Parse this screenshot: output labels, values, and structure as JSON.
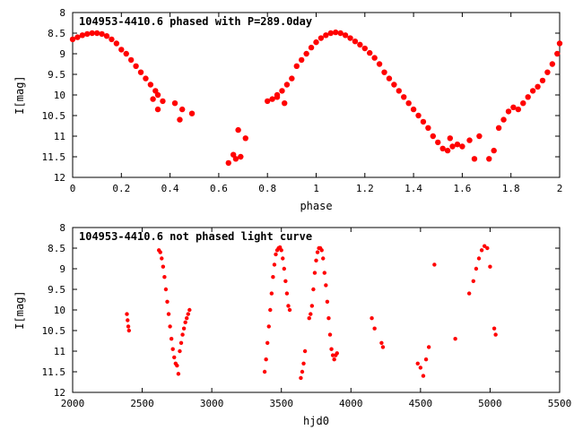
{
  "chart_data": [
    {
      "type": "scatter",
      "title": "104953-4410.6 phased with P=289.0day",
      "xlabel": "phase",
      "ylabel": "I[mag]",
      "xlim": [
        0,
        2
      ],
      "ylim": [
        8,
        12
      ],
      "y_inverted": true,
      "xticks": [
        0,
        0.2,
        0.4,
        0.6,
        0.8,
        1,
        1.2,
        1.4,
        1.6,
        1.8,
        2
      ],
      "xtick_labels": [
        "0",
        "0.2",
        "0.4",
        "0.6",
        "0.8",
        "1",
        "1.2",
        "1.4",
        "1.6",
        "1.8",
        "2"
      ],
      "yticks": [
        8,
        8.5,
        9,
        9.5,
        10,
        10.5,
        11,
        11.5,
        12
      ],
      "ytick_labels": [
        "8",
        "8.5",
        "9",
        "9.5",
        "10",
        "10.5",
        "11",
        "11.5",
        "12"
      ],
      "grid": false,
      "marker_color": "#ff0000",
      "series": [
        {
          "x": [
            0.0,
            0.02,
            0.04,
            0.06,
            0.08,
            0.1,
            0.12,
            0.14,
            0.16,
            0.18,
            0.2,
            0.22,
            0.24,
            0.26,
            0.28,
            0.3,
            0.32,
            0.34,
            0.35,
            0.37,
            0.33,
            0.35,
            0.42,
            0.44,
            0.45,
            0.49,
            0.64,
            0.66,
            0.67,
            0.69,
            0.68,
            0.71,
            0.8,
            0.82,
            0.84,
            0.86,
            0.88,
            0.9,
            0.84,
            0.87,
            0.92,
            0.94,
            0.96,
            0.98,
            1.0,
            1.02,
            1.04,
            1.06,
            1.08,
            1.1,
            1.12,
            1.14,
            1.16,
            1.18,
            1.2,
            1.22,
            1.24,
            1.26,
            1.28,
            1.3,
            1.32,
            1.34,
            1.36,
            1.38,
            1.4,
            1.42,
            1.44,
            1.46,
            1.48,
            1.5,
            1.52,
            1.54,
            1.56,
            1.58,
            1.6,
            1.55,
            1.63,
            1.65,
            1.67,
            1.71,
            1.73,
            1.75,
            1.77,
            1.79,
            1.81,
            1.83,
            1.85,
            1.87,
            1.89,
            1.91,
            1.93,
            1.95,
            1.97,
            1.99,
            2.0
          ],
          "y": [
            8.65,
            8.6,
            8.55,
            8.52,
            8.5,
            8.5,
            8.52,
            8.57,
            8.65,
            8.75,
            8.9,
            9.0,
            9.15,
            9.3,
            9.45,
            9.6,
            9.75,
            9.9,
            10.0,
            10.15,
            10.1,
            10.35,
            10.2,
            10.6,
            10.35,
            10.45,
            11.65,
            11.45,
            11.55,
            11.5,
            10.85,
            11.05,
            10.15,
            10.1,
            10.05,
            9.9,
            9.75,
            9.6,
            10.0,
            10.2,
            9.3,
            9.15,
            9.0,
            8.85,
            8.72,
            8.62,
            8.55,
            8.5,
            8.48,
            8.5,
            8.55,
            8.62,
            8.7,
            8.78,
            8.87,
            8.98,
            9.1,
            9.25,
            9.45,
            9.6,
            9.75,
            9.9,
            10.05,
            10.2,
            10.35,
            10.5,
            10.65,
            10.8,
            11.0,
            11.15,
            11.3,
            11.35,
            11.25,
            11.2,
            11.25,
            11.05,
            11.1,
            11.55,
            11.0,
            11.55,
            11.35,
            10.8,
            10.6,
            10.4,
            10.3,
            10.35,
            10.2,
            10.05,
            9.9,
            9.8,
            9.65,
            9.45,
            9.25,
            9.0,
            8.75
          ]
        }
      ]
    },
    {
      "type": "scatter",
      "title": "104953-4410.6 not phased light curve",
      "xlabel": "hjd0",
      "ylabel": "I[mag]",
      "xlim": [
        2000,
        5500
      ],
      "ylim": [
        8,
        12
      ],
      "y_inverted": true,
      "xticks": [
        2000,
        2500,
        3000,
        3500,
        4000,
        4500,
        5000,
        5500
      ],
      "xtick_labels": [
        "2000",
        "2500",
        "3000",
        "3500",
        "4000",
        "4500",
        "5000",
        "5500"
      ],
      "yticks": [
        8,
        8.5,
        9,
        9.5,
        10,
        10.5,
        11,
        11.5,
        12
      ],
      "ytick_labels": [
        "8",
        "8.5",
        "9",
        "9.5",
        "10",
        "10.5",
        "11",
        "11.5",
        "12"
      ],
      "grid": false,
      "marker_color": "#ff0000",
      "series": [
        {
          "x": [
            2390,
            2395,
            2400,
            2405,
            2620,
            2630,
            2640,
            2650,
            2660,
            2670,
            2680,
            2690,
            2700,
            2710,
            2720,
            2730,
            2740,
            2750,
            2760,
            2770,
            2780,
            2790,
            2800,
            2810,
            2820,
            2830,
            2840,
            3380,
            3390,
            3400,
            3410,
            3420,
            3430,
            3440,
            3450,
            3460,
            3470,
            3480,
            3490,
            3500,
            3510,
            3520,
            3530,
            3540,
            3550,
            3560,
            3640,
            3650,
            3660,
            3670,
            3700,
            3710,
            3720,
            3730,
            3740,
            3750,
            3760,
            3770,
            3780,
            3790,
            3800,
            3810,
            3820,
            3830,
            3840,
            3850,
            3860,
            3870,
            3880,
            3890,
            3900,
            4150,
            4170,
            4220,
            4230,
            4480,
            4500,
            4520,
            4540,
            4560,
            4600,
            4750,
            4850,
            4880,
            4900,
            4920,
            4940,
            4960,
            4980,
            5000,
            5030,
            5040
          ],
          "y": [
            10.1,
            10.25,
            10.4,
            10.5,
            8.55,
            8.6,
            8.75,
            8.95,
            9.2,
            9.5,
            9.8,
            10.1,
            10.4,
            10.7,
            10.95,
            11.15,
            11.3,
            11.35,
            11.55,
            11.0,
            10.8,
            10.6,
            10.45,
            10.3,
            10.2,
            10.1,
            10.0,
            11.5,
            11.2,
            10.8,
            10.4,
            10.0,
            9.6,
            9.2,
            8.9,
            8.65,
            8.55,
            8.5,
            8.48,
            8.55,
            8.75,
            9.0,
            9.3,
            9.6,
            9.9,
            10.0,
            11.65,
            11.5,
            11.3,
            11.0,
            10.2,
            10.1,
            9.9,
            9.5,
            9.1,
            8.8,
            8.6,
            8.5,
            8.5,
            8.55,
            8.75,
            9.1,
            9.4,
            9.8,
            10.2,
            10.6,
            10.95,
            11.1,
            11.2,
            11.1,
            11.05,
            10.2,
            10.45,
            10.8,
            10.9,
            11.3,
            11.4,
            11.6,
            11.2,
            10.9,
            8.9,
            10.7,
            9.6,
            9.3,
            9.0,
            8.75,
            8.55,
            8.45,
            8.5,
            8.95,
            10.45,
            10.6
          ]
        }
      ]
    }
  ]
}
